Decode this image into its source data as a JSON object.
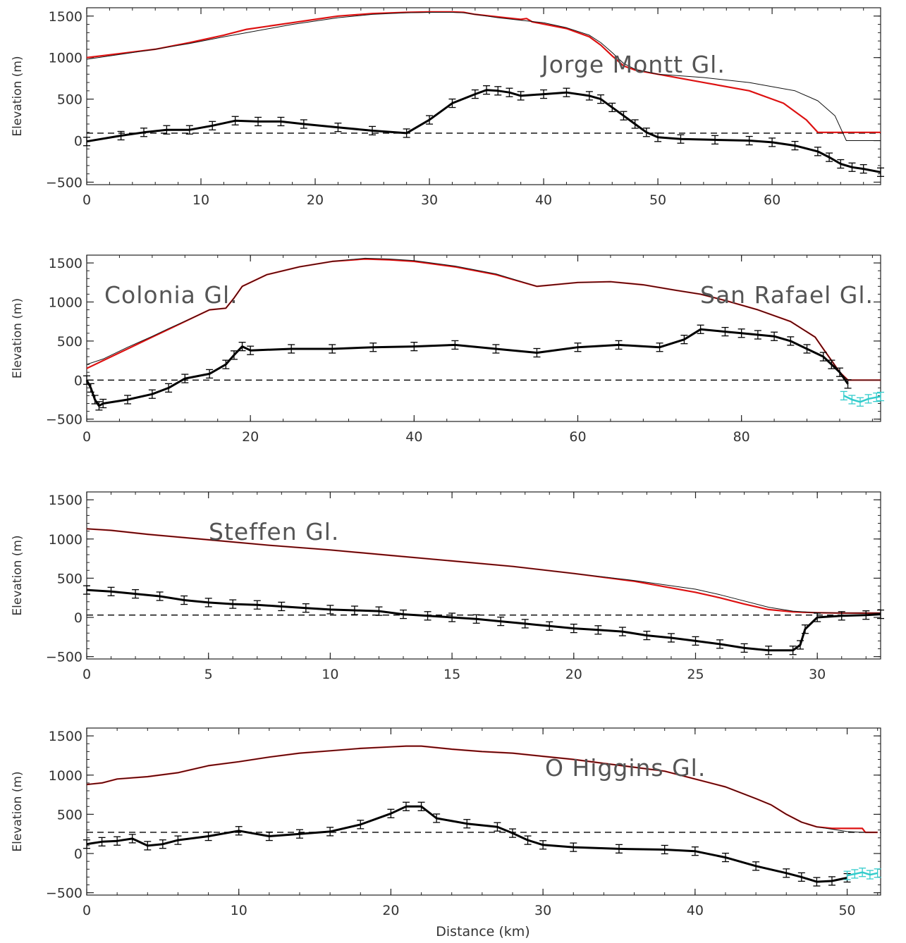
{
  "colors": {
    "surface": "#dd1111",
    "surface_thin": "#111111",
    "bed": "#000000",
    "bed_cyan": "#33cccc",
    "sea_level_dash": "#000000"
  },
  "figure": {
    "xlabel": "Distance (km)"
  },
  "chart_data": [
    {
      "type": "line",
      "title": "",
      "annotations": [
        {
          "text": "Jorge Montt Gl.",
          "at": [
            40,
            1000
          ]
        }
      ],
      "ylabel": "Elevation (m)",
      "xlabel": "",
      "xlim": [
        0,
        69.5
      ],
      "ylim": [
        -530,
        1600
      ],
      "xticks": [
        0,
        10,
        20,
        30,
        40,
        50,
        60
      ],
      "xtick_labels": [
        "0",
        "10",
        "20",
        "30",
        "40",
        "50",
        "60"
      ],
      "yticks": [
        -500,
        0,
        500,
        1000,
        1500
      ],
      "ytick_labels": [
        "-500",
        "0",
        "500",
        "1000",
        "1500"
      ],
      "dashed_level": 90,
      "series": [
        {
          "role": "surface_red",
          "x": [
            0,
            3,
            6,
            9,
            12,
            14,
            16,
            18,
            20,
            22,
            25,
            28,
            30,
            32,
            33,
            34,
            36,
            38,
            38.5,
            39,
            42,
            44,
            45,
            46,
            47,
            48,
            50,
            54,
            58,
            61,
            63,
            64,
            69.5
          ],
          "y": [
            1000,
            1050,
            1100,
            1180,
            1270,
            1340,
            1380,
            1420,
            1460,
            1500,
            1530,
            1545,
            1550,
            1550,
            1545,
            1520,
            1490,
            1460,
            1470,
            1430,
            1350,
            1250,
            1150,
            1020,
            900,
            850,
            800,
            700,
            600,
            450,
            250,
            100,
            100
          ]
        },
        {
          "role": "surface_thin",
          "x": [
            0,
            3,
            6,
            9,
            12,
            14,
            16,
            18,
            20,
            22,
            25,
            28,
            30,
            32,
            33,
            34,
            36,
            38,
            40,
            42,
            44,
            45,
            46,
            47,
            48,
            50,
            54,
            58,
            62,
            64,
            65.5,
            66.5,
            69.5
          ],
          "y": [
            980,
            1040,
            1100,
            1170,
            1250,
            1300,
            1350,
            1400,
            1440,
            1480,
            1520,
            1540,
            1545,
            1545,
            1540,
            1520,
            1480,
            1450,
            1420,
            1360,
            1270,
            1180,
            1060,
            930,
            860,
            800,
            760,
            700,
            600,
            480,
            300,
            0,
            0
          ]
        },
        {
          "role": "bed",
          "x": [
            0,
            3,
            5,
            7,
            9,
            11,
            13,
            15,
            17,
            19,
            22,
            25,
            28,
            30,
            32,
            34,
            35,
            36,
            37,
            38,
            40,
            42,
            44,
            45,
            46,
            47,
            48,
            49,
            50,
            52,
            55,
            58,
            60,
            62,
            64,
            65,
            66,
            67,
            68,
            69.5
          ],
          "y": [
            -10,
            60,
            100,
            130,
            130,
            180,
            240,
            230,
            230,
            200,
            160,
            120,
            90,
            250,
            450,
            560,
            610,
            600,
            580,
            540,
            560,
            580,
            540,
            500,
            400,
            300,
            200,
            100,
            40,
            20,
            10,
            0,
            -20,
            -60,
            -130,
            -200,
            -280,
            -320,
            -340,
            -380
          ]
        }
      ]
    },
    {
      "type": "line",
      "title": "",
      "annotations": [
        {
          "text": "Colonia Gl.",
          "at": [
            2,
            1100
          ]
        },
        {
          "text": "San Rafael Gl.",
          "at": [
            75,
            1100
          ]
        }
      ],
      "ylabel": "Elevation (m)",
      "xlabel": "",
      "xlim": [
        0,
        97
      ],
      "ylim": [
        -530,
        1600
      ],
      "xticks": [
        0,
        20,
        40,
        60,
        80
      ],
      "xtick_labels": [
        "0",
        "20",
        "40",
        "60",
        "80"
      ],
      "yticks": [
        -500,
        0,
        500,
        1000,
        1500
      ],
      "ytick_labels": [
        "-500",
        "0",
        "500",
        "1000",
        "1500"
      ],
      "dashed_level": 0,
      "series": [
        {
          "role": "surface_red",
          "x": [
            0,
            2,
            5,
            8,
            10,
            13,
            15,
            17,
            18,
            19,
            22,
            26,
            30,
            34,
            37,
            40,
            45,
            50,
            55,
            60,
            64,
            68,
            72,
            75,
            78,
            82,
            86,
            89,
            90,
            91,
            92,
            93,
            97
          ],
          "y": [
            150,
            250,
            400,
            550,
            650,
            800,
            900,
            920,
            1050,
            1200,
            1350,
            1450,
            1520,
            1550,
            1540,
            1520,
            1450,
            1350,
            1200,
            1250,
            1260,
            1220,
            1150,
            1100,
            1020,
            900,
            750,
            550,
            400,
            250,
            100,
            0,
            0
          ]
        },
        {
          "role": "surface_thin",
          "x": [
            0,
            2,
            5,
            8,
            10,
            13,
            15,
            17,
            18,
            19,
            22,
            26,
            30,
            34,
            37,
            40,
            45,
            50,
            55,
            60,
            64,
            68,
            72,
            75,
            78,
            82,
            86,
            89,
            90,
            91,
            92,
            93,
            97
          ],
          "y": [
            200,
            270,
            420,
            560,
            660,
            800,
            900,
            920,
            1050,
            1200,
            1350,
            1450,
            1520,
            1560,
            1550,
            1530,
            1460,
            1360,
            1200,
            1250,
            1260,
            1220,
            1150,
            1100,
            1020,
            900,
            750,
            550,
            400,
            250,
            100,
            0,
            0
          ]
        },
        {
          "role": "bed",
          "x": [
            0,
            0.5,
            1,
            1.5,
            2,
            5,
            8,
            10,
            12,
            15,
            17,
            18,
            19,
            20,
            25,
            30,
            35,
            40,
            45,
            50,
            55,
            60,
            65,
            70,
            73,
            75,
            78,
            80,
            82,
            84,
            86,
            88,
            90,
            91,
            92,
            93
          ],
          "y": [
            0,
            -100,
            -250,
            -330,
            -300,
            -250,
            -180,
            -100,
            20,
            80,
            200,
            320,
            430,
            380,
            400,
            400,
            420,
            430,
            450,
            400,
            350,
            420,
            450,
            420,
            520,
            650,
            620,
            600,
            580,
            560,
            500,
            400,
            300,
            200,
            100,
            -50
          ]
        },
        {
          "role": "bed_cyan",
          "x": [
            92.5,
            93.5,
            94.5,
            95.5,
            96.5,
            97
          ],
          "y": [
            -200,
            -250,
            -280,
            -240,
            -220,
            -210
          ]
        }
      ]
    },
    {
      "type": "line",
      "title": "",
      "annotations": [
        {
          "text": "Steffen Gl.",
          "at": [
            5,
            1100
          ]
        }
      ],
      "ylabel": "Elevation (m)",
      "xlabel": "",
      "xlim": [
        0,
        32.6
      ],
      "ylim": [
        -530,
        1600
      ],
      "xticks": [
        0,
        5,
        10,
        15,
        20,
        25,
        30
      ],
      "xtick_labels": [
        "0",
        "5",
        "10",
        "15",
        "20",
        "25",
        "30"
      ],
      "yticks": [
        -500,
        0,
        500,
        1000,
        1500
      ],
      "ytick_labels": [
        "-500",
        "0",
        "500",
        "1000",
        "1500"
      ],
      "dashed_level": 30,
      "series": [
        {
          "role": "surface_red",
          "x": [
            0,
            1,
            2.5,
            5,
            7.5,
            10,
            12.5,
            15,
            17.5,
            20,
            22.5,
            25,
            26,
            27,
            28,
            29,
            30,
            31,
            32.6
          ],
          "y": [
            1130,
            1110,
            1060,
            990,
            920,
            860,
            790,
            720,
            650,
            560,
            460,
            320,
            250,
            170,
            100,
            70,
            60,
            55,
            55
          ]
        },
        {
          "role": "surface_thin",
          "x": [
            0,
            1,
            2.5,
            5,
            7.5,
            10,
            12.5,
            15,
            17.5,
            20,
            22.5,
            25,
            26,
            27,
            28,
            29,
            30,
            31,
            32.6
          ],
          "y": [
            1130,
            1110,
            1060,
            990,
            920,
            860,
            790,
            720,
            650,
            560,
            470,
            360,
            290,
            210,
            130,
            80,
            60,
            55,
            55
          ]
        },
        {
          "role": "bed",
          "x": [
            0,
            1,
            2,
            3,
            4,
            5,
            6,
            7,
            8,
            9,
            10,
            11,
            12,
            13,
            14,
            15,
            16,
            17,
            18,
            19,
            20,
            21,
            22,
            23,
            24,
            25,
            26,
            27,
            28,
            29,
            29.3,
            29.5,
            30,
            31,
            32,
            32.6
          ],
          "y": [
            350,
            330,
            300,
            270,
            220,
            190,
            170,
            160,
            140,
            120,
            100,
            90,
            80,
            40,
            20,
            0,
            -20,
            -50,
            -80,
            -110,
            -140,
            -160,
            -180,
            -230,
            -260,
            -300,
            -340,
            -390,
            -420,
            -420,
            -350,
            -150,
            0,
            20,
            30,
            40
          ]
        }
      ]
    },
    {
      "type": "line",
      "title": "",
      "annotations": [
        {
          "text": "O Higgins Gl.",
          "at": [
            30,
            1100
          ]
        }
      ],
      "ylabel": "Elevation (m)",
      "xlabel": "Distance (km)",
      "xlim": [
        0,
        52.2
      ],
      "ylim": [
        -530,
        1600
      ],
      "xticks": [
        0,
        10,
        20,
        30,
        40,
        50
      ],
      "xtick_labels": [
        "0",
        "10",
        "20",
        "30",
        "40",
        "50"
      ],
      "yticks": [
        -500,
        0,
        500,
        1000,
        1500
      ],
      "ytick_labels": [
        "-500",
        "0",
        "500",
        "1000",
        "1500"
      ],
      "dashed_level": 270,
      "series": [
        {
          "role": "surface_red",
          "x": [
            0,
            1,
            2,
            4,
            6,
            8,
            10,
            12,
            14,
            16,
            18,
            20,
            21,
            22,
            24,
            26,
            28,
            30,
            32,
            34,
            36,
            38,
            40,
            42,
            44,
            45,
            46,
            47,
            48,
            49,
            50,
            51,
            51.2,
            52
          ],
          "y": [
            880,
            900,
            950,
            980,
            1030,
            1120,
            1170,
            1230,
            1280,
            1310,
            1340,
            1360,
            1370,
            1370,
            1330,
            1300,
            1280,
            1240,
            1200,
            1150,
            1100,
            1050,
            950,
            850,
            700,
            620,
            500,
            400,
            340,
            320,
            320,
            320,
            270,
            270
          ]
        },
        {
          "role": "surface_thin",
          "x": [
            0,
            1,
            2,
            4,
            6,
            8,
            10,
            12,
            14,
            16,
            18,
            20,
            21,
            22,
            24,
            26,
            28,
            30,
            32,
            34,
            36,
            38,
            40,
            42,
            44,
            45,
            46,
            47,
            48,
            49,
            50,
            51,
            52
          ],
          "y": [
            880,
            900,
            950,
            980,
            1030,
            1120,
            1170,
            1230,
            1280,
            1310,
            1340,
            1360,
            1370,
            1370,
            1330,
            1300,
            1280,
            1240,
            1200,
            1150,
            1100,
            1050,
            950,
            850,
            700,
            620,
            500,
            400,
            340,
            310,
            280,
            270,
            270
          ]
        },
        {
          "role": "bed",
          "x": [
            0,
            1,
            2,
            3,
            4,
            5,
            6,
            8,
            10,
            12,
            14,
            16,
            18,
            20,
            21,
            22,
            23,
            25,
            27,
            28,
            29,
            30,
            32,
            35,
            38,
            40,
            42,
            44,
            46,
            47,
            48,
            49,
            50
          ],
          "y": [
            120,
            150,
            160,
            190,
            100,
            120,
            170,
            220,
            290,
            220,
            250,
            280,
            370,
            510,
            600,
            600,
            450,
            380,
            340,
            260,
            170,
            110,
            80,
            60,
            50,
            30,
            -50,
            -160,
            -250,
            -300,
            -360,
            -350,
            -310
          ]
        },
        {
          "role": "bed_cyan",
          "x": [
            50,
            50.5,
            51,
            51.5,
            52
          ],
          "y": [
            -280,
            -260,
            -240,
            -270,
            -250
          ]
        }
      ]
    }
  ]
}
